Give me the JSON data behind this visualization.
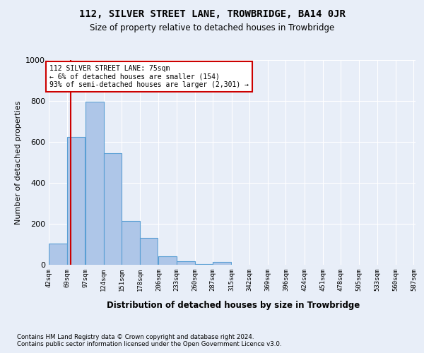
{
  "title": "112, SILVER STREET LANE, TROWBRIDGE, BA14 0JR",
  "subtitle": "Size of property relative to detached houses in Trowbridge",
  "xlabel_dist": "Distribution of detached houses by size in Trowbridge",
  "ylabel": "Number of detached properties",
  "footer_line1": "Contains HM Land Registry data © Crown copyright and database right 2024.",
  "footer_line2": "Contains public sector information licensed under the Open Government Licence v3.0.",
  "bin_labels": [
    "42sqm",
    "69sqm",
    "97sqm",
    "124sqm",
    "151sqm",
    "178sqm",
    "206sqm",
    "233sqm",
    "260sqm",
    "287sqm",
    "315sqm",
    "342sqm",
    "369sqm",
    "396sqm",
    "424sqm",
    "451sqm",
    "478sqm",
    "505sqm",
    "533sqm",
    "560sqm",
    "587sqm"
  ],
  "bar_values": [
    105,
    625,
    795,
    545,
    215,
    130,
    42,
    18,
    5,
    13,
    0,
    0,
    0,
    0,
    0,
    0,
    0,
    0,
    0,
    0
  ],
  "bar_color": "#aec6e8",
  "bar_edge_color": "#5a9fd4",
  "property_line_x": 75,
  "annotation_line1": "112 SILVER STREET LANE: 75sqm",
  "annotation_line2": "← 6% of detached houses are smaller (154)",
  "annotation_line3": "93% of semi-detached houses are larger (2,301) →",
  "annotation_box_color": "#cc0000",
  "ylim": [
    0,
    1000
  ],
  "bin_edges": [
    42,
    69,
    97,
    124,
    151,
    178,
    206,
    233,
    260,
    287,
    315,
    342,
    369,
    396,
    424,
    451,
    478,
    505,
    533,
    560,
    587
  ],
  "background_color": "#e8eef8",
  "plot_background_color": "#e8eef8"
}
